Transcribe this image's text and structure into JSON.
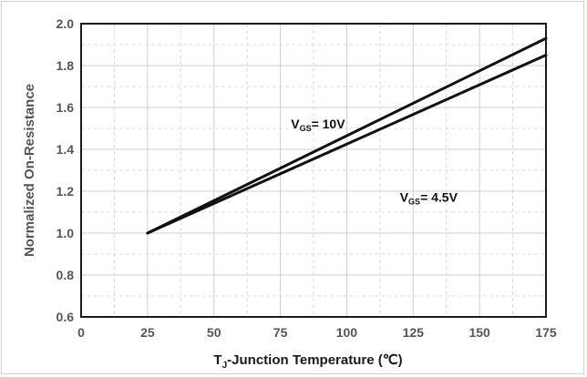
{
  "chart_data": {
    "type": "line",
    "xlabel": {
      "prefix": "T",
      "sub": "J",
      "rest": "-Junction Temperature (℃)"
    },
    "ylabel": "Normalized On-Resistance",
    "xlim": [
      0,
      175
    ],
    "ylim": [
      0.6,
      2.0
    ],
    "xticks": [
      0,
      25,
      50,
      75,
      100,
      125,
      150,
      175
    ],
    "yticks": [
      0.6,
      0.8,
      1.0,
      1.2,
      1.4,
      1.6,
      1.8,
      2.0
    ],
    "ytick_labels": [
      "0.6",
      "0.8",
      "1.0",
      "1.2",
      "1.4",
      "1.6",
      "1.8",
      "2.0"
    ],
    "grid": true,
    "series": [
      {
        "name": "VGS= 10V",
        "x": [
          25,
          175
        ],
        "y": [
          1.0,
          1.93
        ]
      },
      {
        "name": "VGS= 4.5V",
        "x": [
          25,
          175
        ],
        "y": [
          1.0,
          1.85
        ]
      }
    ],
    "annotations": [
      {
        "main": "V",
        "sub": "GS",
        "rest": "= 10V",
        "x": 79,
        "y": 1.5
      },
      {
        "main": "V",
        "sub": "GS",
        "rest": "= 4.5V",
        "x": 120,
        "y": 1.15
      }
    ]
  }
}
